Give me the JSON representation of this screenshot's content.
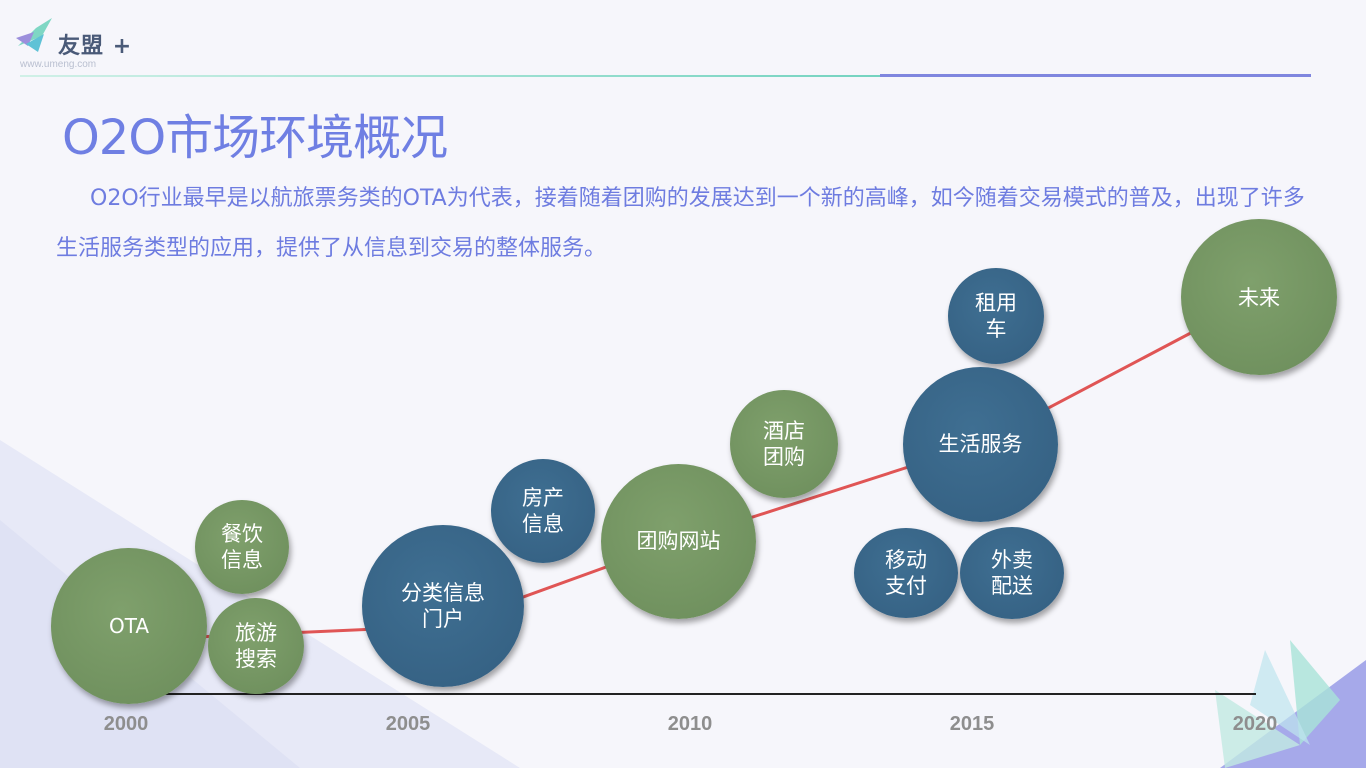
{
  "brand": {
    "name": "友盟",
    "plus": "+",
    "url": "www.umeng.com",
    "accent_color": "#7f86df",
    "teal_color": "#74d3c0"
  },
  "slide": {
    "title": "O2O市场环境概况",
    "intro": "O2O行业最早是以航旅票务类的OTA为代表，接着随着团购的发展达到一个新的高峰，如今随着交易模式的普及，出现了许多生活服务类型的应用，提供了从信息到交易的整体服务。"
  },
  "timeline": {
    "years": [
      "2000",
      "2005",
      "2010",
      "2015",
      "2020"
    ],
    "line_color": "#e05555",
    "green": "#72925f",
    "blue": "#386788",
    "nodes": [
      {
        "label": "OTA",
        "color": "green"
      },
      {
        "label": "餐饮\n信息",
        "color": "green"
      },
      {
        "label": "旅游\n搜索",
        "color": "green"
      },
      {
        "label": "分类信息\n门户",
        "color": "blue"
      },
      {
        "label": "房产\n信息",
        "color": "blue"
      },
      {
        "label": "团购网站",
        "color": "green"
      },
      {
        "label": "酒店\n团购",
        "color": "green"
      },
      {
        "label": "租用\n车",
        "color": "blue"
      },
      {
        "label": "生活服务",
        "color": "blue"
      },
      {
        "label": "移动\n支付",
        "color": "blue"
      },
      {
        "label": "外卖\n配送",
        "color": "blue"
      },
      {
        "label": "未来",
        "color": "green"
      }
    ]
  }
}
